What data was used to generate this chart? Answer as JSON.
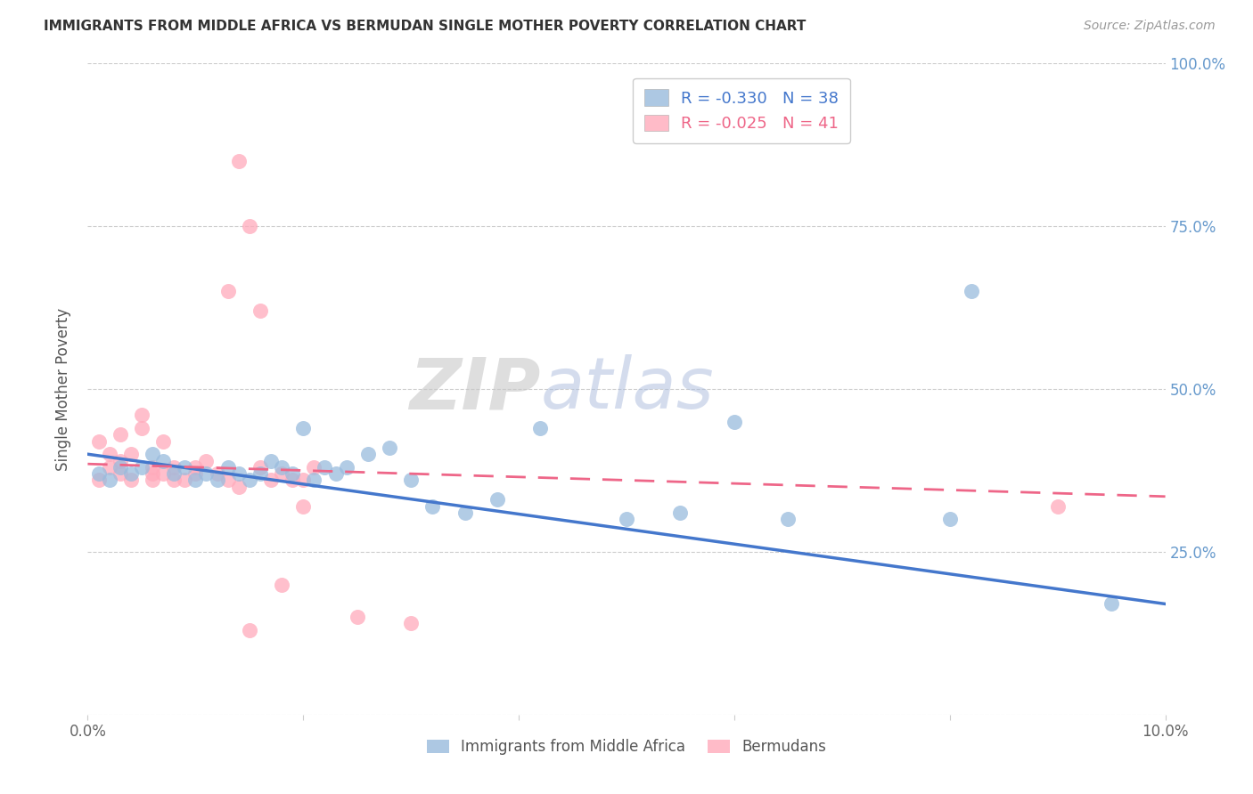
{
  "title": "IMMIGRANTS FROM MIDDLE AFRICA VS BERMUDAN SINGLE MOTHER POVERTY CORRELATION CHART",
  "source": "Source: ZipAtlas.com",
  "ylabel": "Single Mother Poverty",
  "xlim": [
    0,
    0.1
  ],
  "ylim": [
    0,
    1.0
  ],
  "xtick_positions": [
    0.0,
    0.02,
    0.04,
    0.06,
    0.08,
    0.1
  ],
  "xtick_labels": [
    "0.0%",
    "",
    "",
    "",
    "",
    "10.0%"
  ],
  "ytick_positions": [
    0.0,
    0.25,
    0.5,
    0.75,
    1.0
  ],
  "ytick_labels_right": [
    "",
    "25.0%",
    "50.0%",
    "75.0%",
    "100.0%"
  ],
  "legend1_label": "R = -0.330   N = 38",
  "legend2_label": "R = -0.025   N = 41",
  "legend_xlabel1": "Immigrants from Middle Africa",
  "legend_xlabel2": "Bermudans",
  "blue_color": "#99bbdd",
  "pink_color": "#ffaabb",
  "blue_line_color": "#4477cc",
  "pink_line_color": "#ee6688",
  "blue_x": [
    0.001,
    0.002,
    0.003,
    0.004,
    0.005,
    0.006,
    0.007,
    0.008,
    0.009,
    0.01,
    0.011,
    0.012,
    0.013,
    0.014,
    0.015,
    0.016,
    0.017,
    0.018,
    0.019,
    0.02,
    0.021,
    0.022,
    0.023,
    0.024,
    0.026,
    0.028,
    0.03,
    0.032,
    0.035,
    0.038,
    0.042,
    0.05,
    0.055,
    0.06,
    0.065,
    0.08,
    0.082,
    0.095
  ],
  "blue_y": [
    0.37,
    0.36,
    0.38,
    0.37,
    0.38,
    0.4,
    0.39,
    0.37,
    0.38,
    0.36,
    0.37,
    0.36,
    0.38,
    0.37,
    0.36,
    0.37,
    0.39,
    0.38,
    0.37,
    0.44,
    0.36,
    0.38,
    0.37,
    0.38,
    0.4,
    0.41,
    0.36,
    0.32,
    0.31,
    0.33,
    0.44,
    0.3,
    0.31,
    0.45,
    0.3,
    0.3,
    0.65,
    0.17
  ],
  "pink_x": [
    0.001,
    0.001,
    0.002,
    0.002,
    0.003,
    0.003,
    0.003,
    0.004,
    0.004,
    0.005,
    0.005,
    0.006,
    0.006,
    0.006,
    0.007,
    0.007,
    0.008,
    0.008,
    0.009,
    0.01,
    0.01,
    0.011,
    0.012,
    0.013,
    0.014,
    0.016,
    0.017,
    0.018,
    0.019,
    0.021,
    0.014,
    0.015,
    0.016,
    0.018,
    0.02,
    0.025,
    0.03,
    0.015,
    0.02,
    0.09,
    0.013
  ],
  "pink_y": [
    0.36,
    0.42,
    0.38,
    0.4,
    0.39,
    0.43,
    0.37,
    0.4,
    0.36,
    0.44,
    0.46,
    0.37,
    0.38,
    0.36,
    0.42,
    0.37,
    0.36,
    0.38,
    0.36,
    0.38,
    0.37,
    0.39,
    0.37,
    0.36,
    0.35,
    0.38,
    0.36,
    0.37,
    0.36,
    0.38,
    0.85,
    0.75,
    0.62,
    0.2,
    0.32,
    0.15,
    0.14,
    0.13,
    0.36,
    0.32,
    0.65
  ],
  "blue_trend_x": [
    0.0,
    0.1
  ],
  "blue_trend_y": [
    0.4,
    0.17
  ],
  "pink_trend_x": [
    0.0,
    0.1
  ],
  "pink_trend_y": [
    0.385,
    0.335
  ],
  "figsize": [
    14.06,
    8.92
  ],
  "dpi": 100
}
